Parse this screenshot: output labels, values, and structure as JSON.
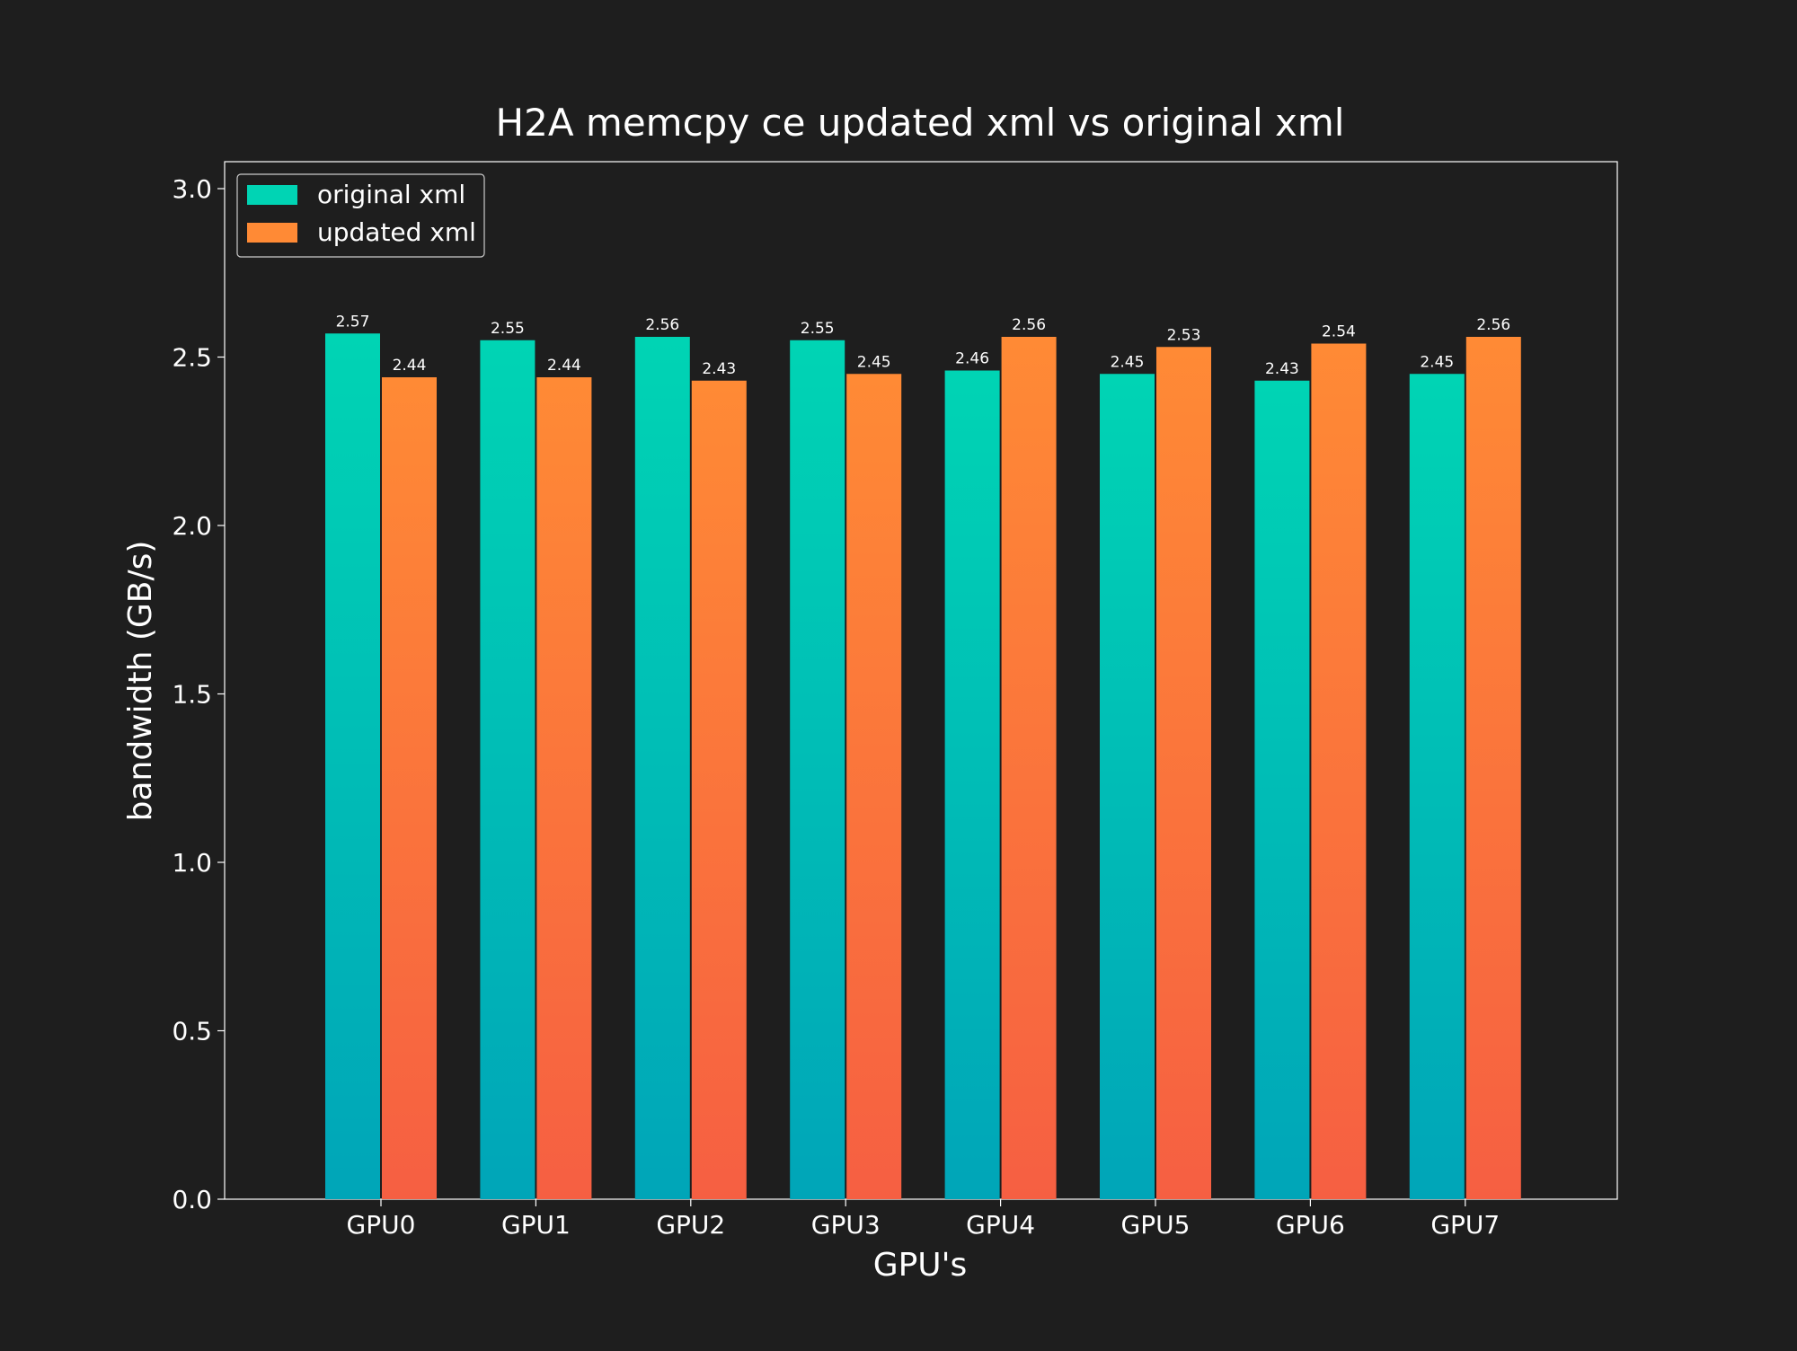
{
  "chart_data": {
    "type": "bar",
    "title": "H2A memcpy ce updated xml vs original xml",
    "xlabel": "GPU's",
    "ylabel": "bandwidth (GB/s)",
    "categories": [
      "GPU0",
      "GPU1",
      "GPU2",
      "GPU3",
      "GPU4",
      "GPU5",
      "GPU6",
      "GPU7"
    ],
    "series": [
      {
        "name": "original xml",
        "values": [
          2.57,
          2.55,
          2.56,
          2.55,
          2.46,
          2.45,
          2.43,
          2.45
        ],
        "labels": [
          "2.57",
          "2.55",
          "2.56",
          "2.55",
          "2.46",
          "2.45",
          "2.43",
          "2.45"
        ],
        "color_top": "#00d4b4",
        "color_bottom": "#00a5b8"
      },
      {
        "name": "updated xml",
        "values": [
          2.44,
          2.44,
          2.43,
          2.45,
          2.56,
          2.53,
          2.54,
          2.56
        ],
        "labels": [
          "2.44",
          "2.44",
          "2.43",
          "2.45",
          "2.56",
          "2.53",
          "2.54",
          "2.56"
        ],
        "color_top": "#ff8a35",
        "color_bottom": "#f65f42"
      }
    ],
    "ylim": [
      0,
      3.08
    ],
    "yticks": [
      0,
      0.5,
      1,
      1.5,
      2,
      2.5,
      3
    ],
    "ytick_labels": [
      "0.0",
      "0.5",
      "1.0",
      "1.5",
      "2.0",
      "2.5",
      "3.0"
    ],
    "grid": false,
    "legend_position": "top-left",
    "background": "#1e1e1e",
    "axes_color": "#ffffff"
  }
}
